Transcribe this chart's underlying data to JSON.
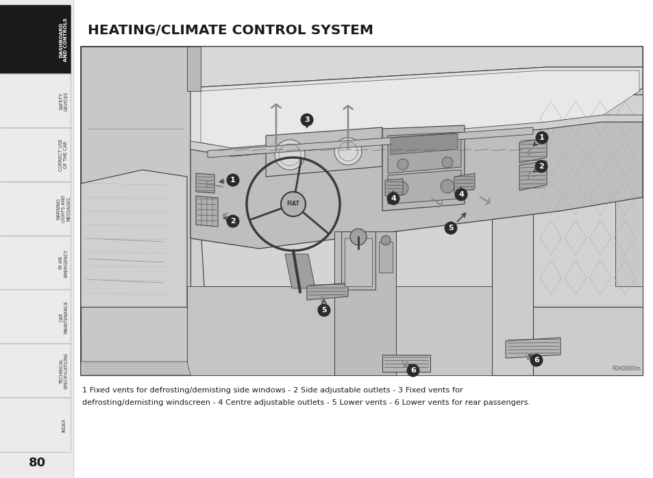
{
  "title": "HEATING/CLIMATE CONTROL SYSTEM",
  "page_number": "80",
  "bg_color": "#ffffff",
  "sidebar_bg": "#ebebeb",
  "sidebar_active_bg": "#1a1a1a",
  "sidebar_active_text": "#ffffff",
  "sidebar_items": [
    {
      "label": "DASHBOARD\nAND CONTROLS",
      "active": true
    },
    {
      "label": "SAFETY\nDEVICES",
      "active": false
    },
    {
      "label": "CORRECT USE\nOF THE CAR",
      "active": false
    },
    {
      "label": "WARNING\nLIGHTS AND\nMESSAGES",
      "active": false
    },
    {
      "label": "IN AN\nEMERGENCY",
      "active": false
    },
    {
      "label": "CAR\nMAINTENANCE",
      "active": false
    },
    {
      "label": "TECHNICAL\nSPECIFICATIONS",
      "active": false
    },
    {
      "label": "INDEX",
      "active": false
    }
  ],
  "caption_line1": "1 Fixed vents for defrosting/demisting side windows - 2 Side adjustable outlets - 3 Fixed vents for",
  "caption_line2": "defrosting/demisting windscreen - 4 Centre adjustable outlets - 5 Lower vents - 6 Lower vents for rear passengers.",
  "image_ref": "F0H0060m",
  "diagram_bg": "#d4d4d4",
  "diagram_border": "#555555"
}
